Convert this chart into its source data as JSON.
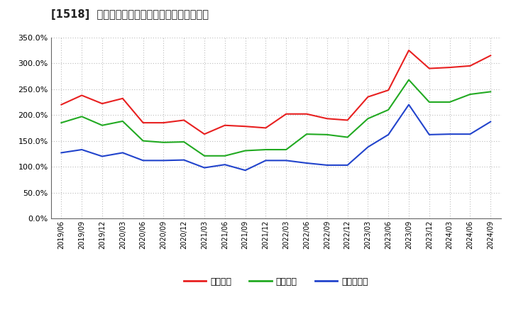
{
  "title": "[1518]  流動比率、当座比率、現預金比率の推移",
  "dates": [
    "2019/06",
    "2019/09",
    "2019/12",
    "2020/03",
    "2020/06",
    "2020/09",
    "2020/12",
    "2021/03",
    "2021/06",
    "2021/09",
    "2021/12",
    "2022/03",
    "2022/06",
    "2022/09",
    "2022/12",
    "2023/03",
    "2023/06",
    "2023/09",
    "2023/12",
    "2024/03",
    "2024/06",
    "2024/09"
  ],
  "ryudo": [
    220,
    238,
    222,
    232,
    185,
    185,
    190,
    163,
    180,
    178,
    175,
    202,
    202,
    193,
    190,
    235,
    248,
    325,
    290,
    292,
    295,
    315
  ],
  "toza": [
    185,
    197,
    180,
    188,
    150,
    147,
    148,
    121,
    121,
    131,
    133,
    133,
    163,
    162,
    157,
    193,
    210,
    268,
    225,
    225,
    240,
    245
  ],
  "genkin": [
    127,
    133,
    120,
    127,
    112,
    112,
    113,
    98,
    104,
    93,
    112,
    112,
    107,
    103,
    103,
    138,
    162,
    220,
    162,
    163,
    163,
    187
  ],
  "ryudo_color": "#e82020",
  "toza_color": "#22aa22",
  "genkin_color": "#2244cc",
  "bg_color": "#ffffff",
  "plot_bg_color": "#ffffff",
  "grid_color": "#aaaaaa",
  "ylim": [
    0,
    350
  ],
  "yticks": [
    0,
    50,
    100,
    150,
    200,
    250,
    300,
    350
  ],
  "legend_labels": [
    "流動比率",
    "当座比率",
    "現預金比率"
  ]
}
